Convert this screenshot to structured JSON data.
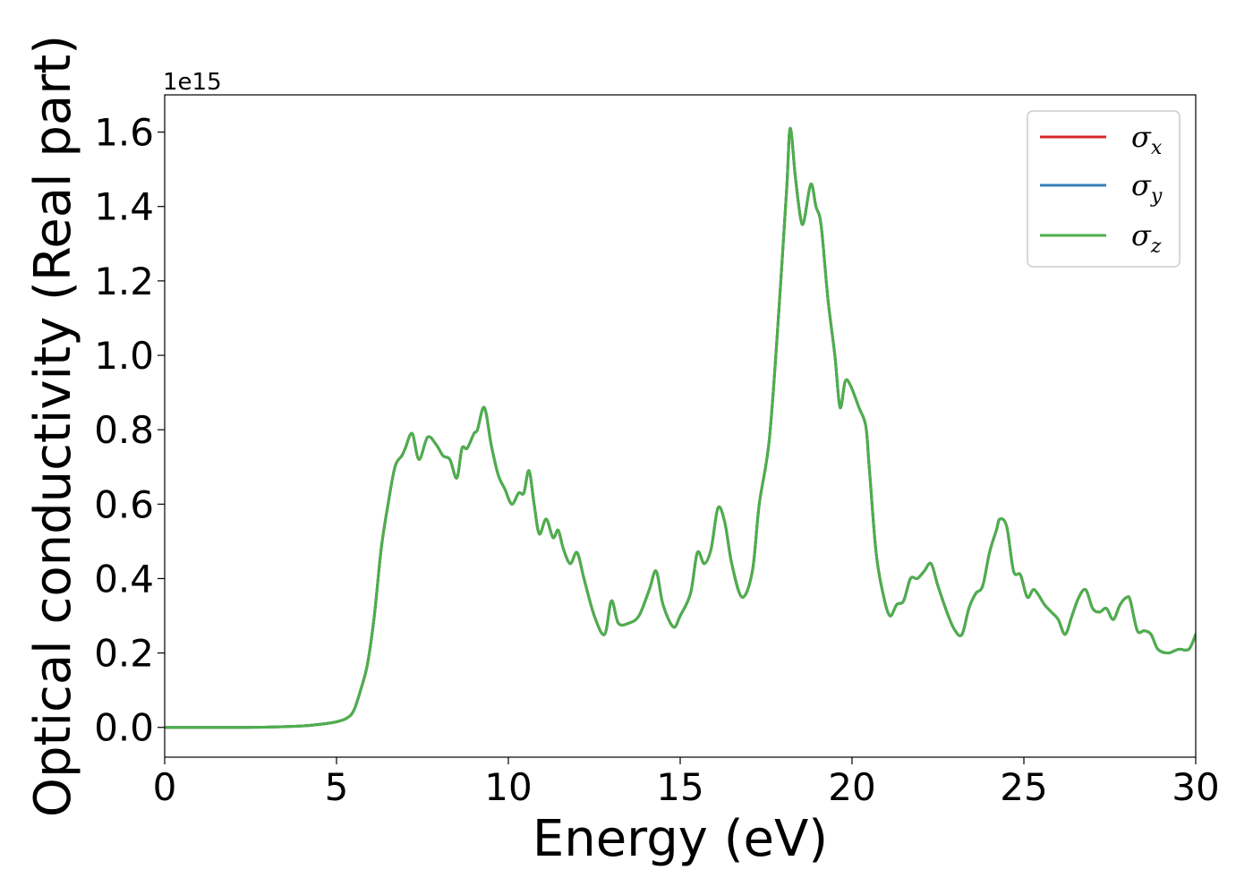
{
  "chart_data": {
    "type": "line",
    "xlabel": "Energy (eV)",
    "ylabel": "Optical conductivity (Real part)",
    "y_offset_label": "1e15",
    "xlim": [
      0,
      30
    ],
    "ylim": [
      -0.08,
      1.7
    ],
    "xticks": [
      0,
      5,
      10,
      15,
      20,
      25,
      30
    ],
    "xtick_labels": [
      "0",
      "5",
      "10",
      "15",
      "20",
      "25",
      "30"
    ],
    "yticks": [
      0.0,
      0.2,
      0.4,
      0.6,
      0.8,
      1.0,
      1.2,
      1.4,
      1.6
    ],
    "ytick_labels": [
      "0.0",
      "0.2",
      "0.4",
      "0.6",
      "0.8",
      "1.0",
      "1.2",
      "1.4",
      "1.6"
    ],
    "grid": false,
    "legend_position": "top-right",
    "series": [
      {
        "name": "σx",
        "symbol": "σ",
        "subscript": "x",
        "color": "#d62728",
        "x": [
          0,
          1,
          2,
          3,
          4,
          4.5,
          5,
          5.3,
          5.5,
          5.7,
          5.9,
          6.1,
          6.3,
          6.5,
          6.7,
          6.9,
          7.0,
          7.2,
          7.4,
          7.65,
          7.9,
          8.1,
          8.3,
          8.5,
          8.65,
          8.8,
          9.0,
          9.1,
          9.3,
          9.5,
          9.7,
          9.9,
          10.1,
          10.3,
          10.45,
          10.6,
          10.75,
          10.9,
          11.1,
          11.3,
          11.45,
          11.6,
          11.8,
          12.0,
          12.2,
          12.5,
          12.8,
          13.0,
          13.2,
          13.5,
          13.8,
          14.1,
          14.3,
          14.5,
          14.8,
          15.0,
          15.3,
          15.5,
          15.7,
          15.9,
          16.1,
          16.3,
          16.5,
          16.8,
          17.1,
          17.3,
          17.6,
          17.9,
          18.1,
          18.2,
          18.35,
          18.5,
          18.6,
          18.8,
          18.95,
          19.1,
          19.3,
          19.5,
          19.65,
          19.8,
          19.95,
          20.2,
          20.4,
          20.5,
          20.7,
          20.9,
          21.1,
          21.3,
          21.5,
          21.7,
          21.9,
          22.1,
          22.3,
          22.5,
          22.8,
          23.0,
          23.2,
          23.4,
          23.6,
          23.8,
          24.0,
          24.2,
          24.3,
          24.5,
          24.7,
          24.9,
          25.1,
          25.3,
          25.6,
          25.8,
          26.0,
          26.2,
          26.4,
          26.6,
          26.8,
          27.0,
          27.2,
          27.4,
          27.6,
          27.8,
          28.0,
          28.1,
          28.3,
          28.5,
          28.7,
          28.9,
          29.2,
          29.5,
          29.8,
          30.0
        ],
        "y": [
          0.0,
          0.0,
          0.0,
          0.001,
          0.004,
          0.008,
          0.015,
          0.025,
          0.045,
          0.1,
          0.17,
          0.3,
          0.48,
          0.6,
          0.7,
          0.73,
          0.75,
          0.79,
          0.72,
          0.78,
          0.76,
          0.73,
          0.72,
          0.67,
          0.75,
          0.75,
          0.79,
          0.8,
          0.86,
          0.76,
          0.68,
          0.64,
          0.6,
          0.63,
          0.63,
          0.69,
          0.6,
          0.52,
          0.56,
          0.51,
          0.53,
          0.48,
          0.44,
          0.47,
          0.4,
          0.3,
          0.25,
          0.34,
          0.28,
          0.28,
          0.3,
          0.37,
          0.42,
          0.33,
          0.27,
          0.3,
          0.36,
          0.47,
          0.44,
          0.48,
          0.59,
          0.55,
          0.44,
          0.35,
          0.42,
          0.6,
          0.78,
          1.16,
          1.45,
          1.61,
          1.48,
          1.37,
          1.36,
          1.46,
          1.4,
          1.35,
          1.15,
          1.0,
          0.86,
          0.93,
          0.92,
          0.86,
          0.81,
          0.7,
          0.47,
          0.36,
          0.3,
          0.33,
          0.34,
          0.4,
          0.4,
          0.42,
          0.44,
          0.38,
          0.3,
          0.26,
          0.25,
          0.32,
          0.36,
          0.38,
          0.47,
          0.53,
          0.56,
          0.54,
          0.42,
          0.41,
          0.35,
          0.37,
          0.33,
          0.31,
          0.29,
          0.25,
          0.3,
          0.35,
          0.37,
          0.32,
          0.31,
          0.32,
          0.29,
          0.33,
          0.35,
          0.34,
          0.26,
          0.26,
          0.25,
          0.21,
          0.2,
          0.21,
          0.21,
          0.25
        ]
      },
      {
        "name": "σy",
        "symbol": "σ",
        "subscript": "y",
        "color": "#377eb8",
        "x": [
          0,
          1,
          2,
          3,
          4,
          4.5,
          5,
          5.3,
          5.5,
          5.7,
          5.9,
          6.1,
          6.3,
          6.5,
          6.7,
          6.9,
          7.0,
          7.2,
          7.4,
          7.65,
          7.9,
          8.1,
          8.3,
          8.5,
          8.65,
          8.8,
          9.0,
          9.1,
          9.3,
          9.5,
          9.7,
          9.9,
          10.1,
          10.3,
          10.45,
          10.6,
          10.75,
          10.9,
          11.1,
          11.3,
          11.45,
          11.6,
          11.8,
          12.0,
          12.2,
          12.5,
          12.8,
          13.0,
          13.2,
          13.5,
          13.8,
          14.1,
          14.3,
          14.5,
          14.8,
          15.0,
          15.3,
          15.5,
          15.7,
          15.9,
          16.1,
          16.3,
          16.5,
          16.8,
          17.1,
          17.3,
          17.6,
          17.9,
          18.1,
          18.2,
          18.35,
          18.5,
          18.6,
          18.8,
          18.95,
          19.1,
          19.3,
          19.5,
          19.65,
          19.8,
          19.95,
          20.2,
          20.4,
          20.5,
          20.7,
          20.9,
          21.1,
          21.3,
          21.5,
          21.7,
          21.9,
          22.1,
          22.3,
          22.5,
          22.8,
          23.0,
          23.2,
          23.4,
          23.6,
          23.8,
          24.0,
          24.2,
          24.3,
          24.5,
          24.7,
          24.9,
          25.1,
          25.3,
          25.6,
          25.8,
          26.0,
          26.2,
          26.4,
          26.6,
          26.8,
          27.0,
          27.2,
          27.4,
          27.6,
          27.8,
          28.0,
          28.1,
          28.3,
          28.5,
          28.7,
          28.9,
          29.2,
          29.5,
          29.8,
          30.0
        ],
        "y": [
          0.0,
          0.0,
          0.0,
          0.001,
          0.004,
          0.008,
          0.015,
          0.025,
          0.045,
          0.1,
          0.17,
          0.3,
          0.48,
          0.6,
          0.7,
          0.73,
          0.75,
          0.79,
          0.72,
          0.78,
          0.76,
          0.73,
          0.72,
          0.67,
          0.75,
          0.75,
          0.79,
          0.8,
          0.86,
          0.76,
          0.68,
          0.64,
          0.6,
          0.63,
          0.63,
          0.69,
          0.6,
          0.52,
          0.56,
          0.51,
          0.53,
          0.48,
          0.44,
          0.47,
          0.4,
          0.3,
          0.25,
          0.34,
          0.28,
          0.28,
          0.3,
          0.37,
          0.42,
          0.33,
          0.27,
          0.3,
          0.36,
          0.47,
          0.44,
          0.48,
          0.59,
          0.55,
          0.44,
          0.35,
          0.42,
          0.6,
          0.78,
          1.16,
          1.45,
          1.61,
          1.48,
          1.37,
          1.36,
          1.46,
          1.4,
          1.35,
          1.15,
          1.0,
          0.86,
          0.93,
          0.92,
          0.86,
          0.81,
          0.7,
          0.47,
          0.36,
          0.3,
          0.33,
          0.34,
          0.4,
          0.4,
          0.42,
          0.44,
          0.38,
          0.3,
          0.26,
          0.25,
          0.32,
          0.36,
          0.38,
          0.47,
          0.53,
          0.56,
          0.54,
          0.42,
          0.41,
          0.35,
          0.37,
          0.33,
          0.31,
          0.29,
          0.25,
          0.3,
          0.35,
          0.37,
          0.32,
          0.31,
          0.32,
          0.29,
          0.33,
          0.35,
          0.34,
          0.26,
          0.26,
          0.25,
          0.21,
          0.2,
          0.21,
          0.21,
          0.25
        ]
      },
      {
        "name": "σz",
        "symbol": "σ",
        "subscript": "z",
        "color": "#4daf4a",
        "x": [
          0,
          1,
          2,
          3,
          4,
          4.5,
          5,
          5.3,
          5.5,
          5.7,
          5.9,
          6.1,
          6.3,
          6.5,
          6.7,
          6.9,
          7.0,
          7.2,
          7.4,
          7.65,
          7.9,
          8.1,
          8.3,
          8.5,
          8.65,
          8.8,
          9.0,
          9.1,
          9.3,
          9.5,
          9.7,
          9.9,
          10.1,
          10.3,
          10.45,
          10.6,
          10.75,
          10.9,
          11.1,
          11.3,
          11.45,
          11.6,
          11.8,
          12.0,
          12.2,
          12.5,
          12.8,
          13.0,
          13.2,
          13.5,
          13.8,
          14.1,
          14.3,
          14.5,
          14.8,
          15.0,
          15.3,
          15.5,
          15.7,
          15.9,
          16.1,
          16.3,
          16.5,
          16.8,
          17.1,
          17.3,
          17.6,
          17.9,
          18.1,
          18.2,
          18.35,
          18.5,
          18.6,
          18.8,
          18.95,
          19.1,
          19.3,
          19.5,
          19.65,
          19.8,
          19.95,
          20.2,
          20.4,
          20.5,
          20.7,
          20.9,
          21.1,
          21.3,
          21.5,
          21.7,
          21.9,
          22.1,
          22.3,
          22.5,
          22.8,
          23.0,
          23.2,
          23.4,
          23.6,
          23.8,
          24.0,
          24.2,
          24.3,
          24.5,
          24.7,
          24.9,
          25.1,
          25.3,
          25.6,
          25.8,
          26.0,
          26.2,
          26.4,
          26.6,
          26.8,
          27.0,
          27.2,
          27.4,
          27.6,
          27.8,
          28.0,
          28.1,
          28.3,
          28.5,
          28.7,
          28.9,
          29.2,
          29.5,
          29.8,
          30.0
        ],
        "y": [
          0.0,
          0.0,
          0.0,
          0.001,
          0.004,
          0.008,
          0.015,
          0.025,
          0.045,
          0.1,
          0.17,
          0.3,
          0.48,
          0.6,
          0.7,
          0.73,
          0.75,
          0.79,
          0.72,
          0.78,
          0.76,
          0.73,
          0.72,
          0.67,
          0.75,
          0.75,
          0.79,
          0.8,
          0.86,
          0.76,
          0.68,
          0.64,
          0.6,
          0.63,
          0.63,
          0.69,
          0.6,
          0.52,
          0.56,
          0.51,
          0.53,
          0.48,
          0.44,
          0.47,
          0.4,
          0.3,
          0.25,
          0.34,
          0.28,
          0.28,
          0.3,
          0.37,
          0.42,
          0.33,
          0.27,
          0.3,
          0.36,
          0.47,
          0.44,
          0.48,
          0.59,
          0.55,
          0.44,
          0.35,
          0.42,
          0.6,
          0.78,
          1.16,
          1.45,
          1.61,
          1.48,
          1.37,
          1.36,
          1.46,
          1.4,
          1.35,
          1.15,
          1.0,
          0.86,
          0.93,
          0.92,
          0.86,
          0.81,
          0.7,
          0.47,
          0.36,
          0.3,
          0.33,
          0.34,
          0.4,
          0.4,
          0.42,
          0.44,
          0.38,
          0.3,
          0.26,
          0.25,
          0.32,
          0.36,
          0.38,
          0.47,
          0.53,
          0.56,
          0.54,
          0.42,
          0.41,
          0.35,
          0.37,
          0.33,
          0.31,
          0.29,
          0.25,
          0.3,
          0.35,
          0.37,
          0.32,
          0.31,
          0.32,
          0.29,
          0.33,
          0.35,
          0.34,
          0.26,
          0.26,
          0.25,
          0.21,
          0.2,
          0.21,
          0.21,
          0.25
        ]
      }
    ]
  }
}
